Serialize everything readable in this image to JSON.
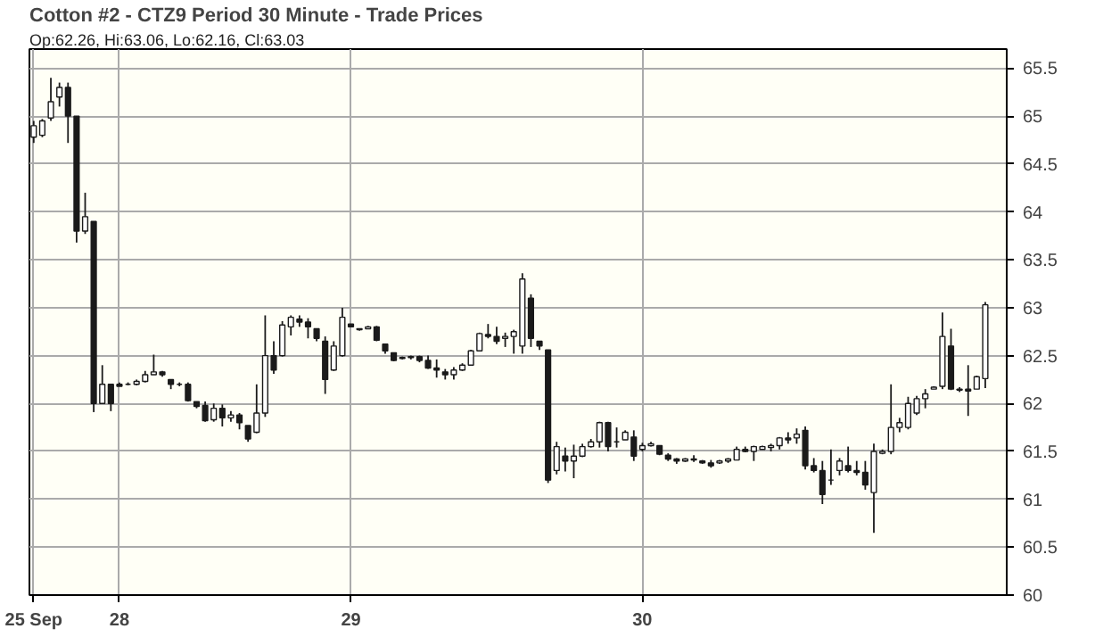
{
  "chart_data": {
    "type": "candlestick",
    "title": "Cotton #2 - CTZ9 Period 30 Minute - Trade Prices",
    "subtitle": "Op:62.26, Hi:63.06, Lo:62.16, Cl:63.03",
    "categories": [
      "25 Sep",
      null,
      null,
      null,
      null,
      null,
      null,
      null,
      null,
      null,
      "28",
      null,
      null,
      null,
      null,
      null,
      null,
      null,
      null,
      null,
      null,
      null,
      null,
      null,
      null,
      null,
      null,
      null,
      null,
      null,
      null,
      null,
      null,
      null,
      null,
      null,
      null,
      "29",
      null,
      null,
      null,
      null,
      null,
      null,
      null,
      null,
      null,
      null,
      null,
      null,
      null,
      null,
      null,
      null,
      null,
      null,
      null,
      null,
      null,
      null,
      null,
      null,
      null,
      null,
      null,
      null,
      null,
      null,
      null,
      null,
      null,
      "30",
      null,
      null,
      null,
      null,
      null,
      null,
      null,
      null,
      null,
      null,
      null,
      null,
      null,
      null,
      null,
      null,
      null,
      null,
      null,
      null,
      null,
      null,
      null,
      null,
      null,
      null,
      null,
      null,
      null,
      null,
      null,
      null,
      null,
      null,
      null,
      null,
      null,
      null,
      null,
      null
    ],
    "ohlc": [
      [
        64.78,
        64.95,
        64.72,
        64.9
      ],
      [
        64.8,
        64.97,
        64.78,
        64.95
      ],
      [
        64.98,
        65.4,
        64.95,
        65.15
      ],
      [
        65.2,
        65.35,
        65.1,
        65.3
      ],
      [
        65.3,
        65.35,
        64.72,
        65.0
      ],
      [
        65.0,
        65.0,
        63.68,
        63.8
      ],
      [
        63.8,
        64.2,
        63.77,
        63.95
      ],
      [
        63.9,
        63.9,
        61.91,
        62.0
      ],
      [
        62.0,
        62.4,
        62.0,
        62.2
      ],
      [
        62.2,
        62.2,
        61.92,
        62.0
      ],
      [
        62.2,
        62.22,
        62.18,
        62.18
      ],
      [
        62.2,
        62.22,
        62.19,
        62.2
      ],
      [
        62.2,
        62.25,
        62.19,
        62.23
      ],
      [
        62.23,
        62.34,
        62.22,
        62.3
      ],
      [
        62.3,
        62.51,
        62.3,
        62.33
      ],
      [
        62.33,
        62.34,
        62.28,
        62.3
      ],
      [
        62.25,
        62.25,
        62.15,
        62.2
      ],
      [
        62.2,
        62.22,
        62.18,
        62.2
      ],
      [
        62.2,
        62.22,
        62.02,
        62.03
      ],
      [
        62.02,
        62.02,
        61.95,
        61.97
      ],
      [
        61.98,
        62.02,
        61.81,
        61.82
      ],
      [
        61.83,
        62.0,
        61.81,
        61.95
      ],
      [
        61.95,
        61.99,
        61.76,
        61.85
      ],
      [
        61.85,
        61.92,
        61.81,
        61.88
      ],
      [
        61.88,
        61.9,
        61.73,
        61.8
      ],
      [
        61.77,
        61.77,
        61.6,
        61.63
      ],
      [
        61.7,
        62.2,
        61.69,
        61.9
      ],
      [
        61.9,
        62.92,
        61.86,
        62.5
      ],
      [
        62.5,
        62.65,
        62.31,
        62.35
      ],
      [
        62.5,
        62.86,
        62.49,
        62.82
      ],
      [
        62.8,
        62.92,
        62.71,
        62.9
      ],
      [
        62.88,
        62.92,
        62.8,
        62.85
      ],
      [
        62.85,
        62.89,
        62.68,
        62.8
      ],
      [
        62.78,
        62.78,
        62.65,
        62.68
      ],
      [
        62.65,
        62.7,
        62.1,
        62.25
      ],
      [
        62.35,
        62.65,
        62.34,
        62.6
      ],
      [
        62.5,
        63.0,
        62.49,
        62.9
      ],
      [
        62.83,
        62.83,
        62.8,
        62.8
      ],
      [
        62.78,
        62.78,
        62.76,
        62.77
      ],
      [
        62.78,
        62.81,
        62.78,
        62.8
      ],
      [
        62.8,
        62.81,
        62.65,
        62.66
      ],
      [
        62.62,
        62.62,
        62.52,
        62.55
      ],
      [
        62.53,
        62.53,
        62.44,
        62.45
      ],
      [
        62.47,
        62.49,
        62.46,
        62.48
      ],
      [
        62.48,
        62.5,
        62.46,
        62.49
      ],
      [
        62.49,
        62.5,
        62.43,
        62.45
      ],
      [
        62.45,
        62.5,
        62.36,
        62.37
      ],
      [
        62.37,
        62.46,
        62.27,
        62.35
      ],
      [
        62.33,
        62.36,
        62.25,
        62.3
      ],
      [
        62.3,
        62.38,
        62.25,
        62.35
      ],
      [
        62.35,
        62.42,
        62.34,
        62.4
      ],
      [
        62.4,
        62.56,
        62.4,
        62.55
      ],
      [
        62.55,
        62.74,
        62.55,
        62.73
      ],
      [
        62.72,
        62.83,
        62.68,
        62.7
      ],
      [
        62.7,
        62.8,
        62.62,
        62.65
      ],
      [
        62.68,
        62.74,
        62.59,
        62.7
      ],
      [
        62.7,
        62.77,
        62.52,
        62.75
      ],
      [
        62.6,
        63.36,
        62.52,
        63.3
      ],
      [
        63.1,
        63.14,
        62.59,
        62.68
      ],
      [
        62.65,
        62.65,
        62.56,
        62.6
      ],
      [
        62.56,
        62.56,
        61.17,
        61.2
      ],
      [
        61.3,
        61.6,
        61.26,
        61.55
      ],
      [
        61.45,
        61.54,
        61.29,
        61.4
      ],
      [
        61.4,
        61.57,
        61.22,
        61.45
      ],
      [
        61.45,
        61.58,
        61.44,
        61.55
      ],
      [
        61.55,
        61.63,
        61.54,
        61.6
      ],
      [
        61.6,
        61.81,
        61.54,
        61.8
      ],
      [
        61.8,
        61.81,
        61.5,
        61.55
      ],
      [
        61.6,
        61.75,
        61.54,
        61.6
      ],
      [
        61.62,
        61.72,
        61.62,
        61.7
      ],
      [
        61.65,
        61.72,
        61.4,
        61.45
      ],
      [
        61.52,
        61.59,
        61.5,
        61.56
      ],
      [
        61.56,
        61.6,
        61.55,
        61.58
      ],
      [
        61.56,
        61.56,
        61.46,
        61.47
      ],
      [
        61.46,
        61.48,
        61.4,
        61.42
      ],
      [
        61.42,
        61.43,
        61.37,
        61.4
      ],
      [
        61.4,
        61.43,
        61.39,
        61.42
      ],
      [
        61.42,
        61.46,
        61.39,
        61.41
      ],
      [
        61.4,
        61.41,
        61.37,
        61.38
      ],
      [
        61.38,
        61.41,
        61.33,
        61.35
      ],
      [
        61.38,
        61.41,
        61.37,
        61.4
      ],
      [
        61.4,
        61.43,
        61.38,
        61.42
      ],
      [
        61.41,
        61.55,
        61.41,
        61.52
      ],
      [
        61.52,
        61.55,
        61.49,
        61.5
      ],
      [
        61.5,
        61.56,
        61.4,
        61.55
      ],
      [
        61.52,
        61.56,
        61.52,
        61.55
      ],
      [
        61.54,
        61.58,
        61.5,
        61.56
      ],
      [
        61.56,
        61.65,
        61.52,
        61.64
      ],
      [
        61.64,
        61.7,
        61.58,
        61.62
      ],
      [
        61.64,
        61.74,
        61.58,
        61.68
      ],
      [
        61.72,
        61.76,
        61.31,
        61.35
      ],
      [
        61.35,
        61.43,
        61.28,
        61.3
      ],
      [
        61.3,
        61.4,
        60.95,
        61.05
      ],
      [
        61.2,
        61.52,
        61.15,
        61.2
      ],
      [
        61.3,
        61.43,
        61.25,
        61.4
      ],
      [
        61.35,
        61.55,
        61.28,
        61.3
      ],
      [
        61.3,
        61.4,
        61.25,
        61.28
      ],
      [
        61.28,
        61.4,
        61.1,
        61.15
      ],
      [
        61.07,
        61.58,
        60.65,
        61.5
      ],
      [
        61.48,
        61.52,
        61.47,
        61.5
      ],
      [
        61.5,
        62.2,
        61.47,
        61.75
      ],
      [
        61.75,
        61.85,
        61.7,
        61.8
      ],
      [
        61.75,
        62.07,
        61.73,
        62.0
      ],
      [
        61.9,
        62.08,
        61.88,
        62.05
      ],
      [
        62.05,
        62.15,
        61.95,
        62.1
      ],
      [
        62.15,
        62.18,
        62.15,
        62.17
      ],
      [
        62.18,
        62.95,
        62.15,
        62.7
      ],
      [
        62.6,
        62.78,
        62.14,
        62.15
      ],
      [
        62.15,
        62.17,
        62.12,
        62.14
      ],
      [
        62.15,
        62.4,
        61.87,
        62.13
      ],
      [
        62.15,
        62.29,
        62.15,
        62.28
      ],
      [
        62.26,
        63.06,
        62.16,
        63.03
      ]
    ],
    "color": "#1a1a1a",
    "ylim": [
      60,
      65.7
    ],
    "yticks": [
      {
        "value": 60,
        "label": "60"
      },
      {
        "value": 60.5,
        "label": "60.5"
      },
      {
        "value": 61,
        "label": "61"
      },
      {
        "value": 61.5,
        "label": "61.5"
      },
      {
        "value": 62,
        "label": "62"
      },
      {
        "value": 62.5,
        "label": "62.5"
      },
      {
        "value": 63,
        "label": "63"
      },
      {
        "value": 63.5,
        "label": "63.5"
      },
      {
        "value": 64,
        "label": "64"
      },
      {
        "value": 64.5,
        "label": "64.5"
      },
      {
        "value": 65,
        "label": "65"
      },
      {
        "value": 65.5,
        "label": "65.5"
      }
    ],
    "grid": true
  }
}
